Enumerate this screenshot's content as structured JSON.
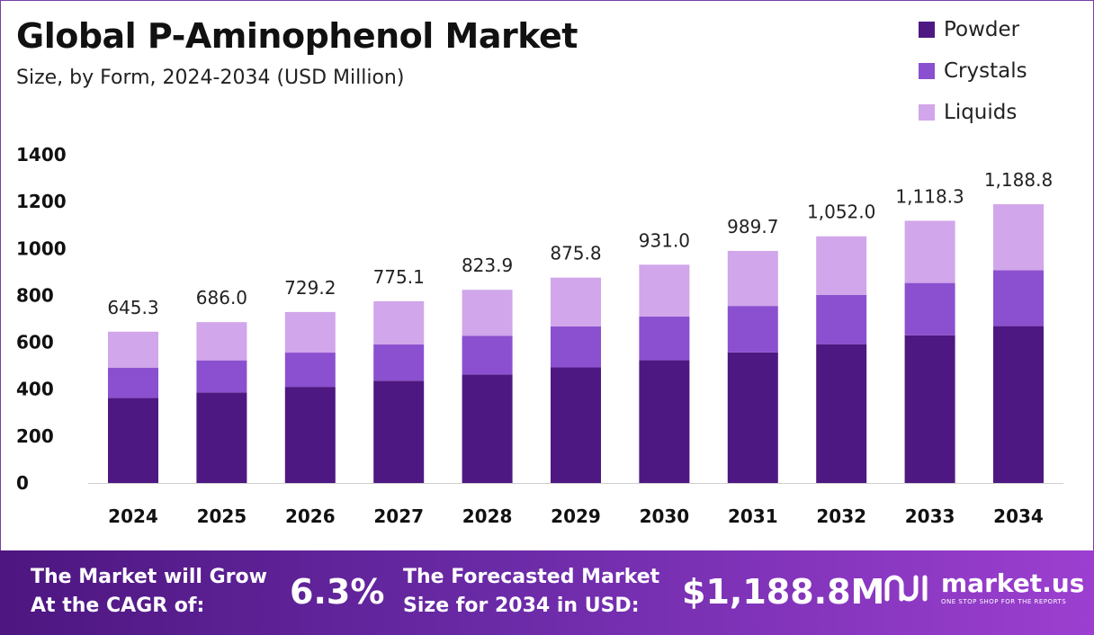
{
  "header": {
    "title": "Global P-Aminophenol Market",
    "subtitle": "Size, by Form, 2024-2034 (USD Million)"
  },
  "legend": [
    {
      "label": "Powder",
      "color": "#4e1882"
    },
    {
      "label": "Crystals",
      "color": "#8b50cf"
    },
    {
      "label": "Liquids",
      "color": "#d1a6ea"
    }
  ],
  "chart_data": {
    "type": "bar",
    "stacked": true,
    "categories": [
      "2024",
      "2025",
      "2026",
      "2027",
      "2028",
      "2029",
      "2030",
      "2031",
      "2032",
      "2033",
      "2034"
    ],
    "series": [
      {
        "name": "Powder",
        "color": "#4e1882",
        "values": [
          363,
          386,
          410,
          436,
          463,
          493,
          524,
          557,
          592,
          630,
          669
        ]
      },
      {
        "name": "Crystals",
        "color": "#8b50cf",
        "values": [
          129,
          137,
          146,
          155,
          165,
          175,
          186,
          198,
          210,
          223,
          238
        ]
      },
      {
        "name": "Liquids",
        "color": "#d1a6ea",
        "values": [
          153.3,
          163,
          173.2,
          184.1,
          195.9,
          207.8,
          221,
          234.7,
          250,
          265.3,
          281.8
        ]
      }
    ],
    "totals": [
      "645.3",
      "686.0",
      "729.2",
      "775.1",
      "823.9",
      "875.8",
      "931.0",
      "989.7",
      "1,052.0",
      "1,118.3",
      "1,188.8"
    ],
    "ylim": [
      0,
      1400
    ],
    "yticks": [
      0,
      200,
      400,
      600,
      800,
      1000,
      1200,
      1400
    ],
    "xlabel": "",
    "ylabel": "",
    "grid": false,
    "legend_position": "top-right"
  },
  "footer": {
    "cagr_label": "The Market will Grow\nAt the CAGR of:",
    "cagr_value": "6.3%",
    "forecast_label": "The Forecasted Market\nSize for 2034 in USD:",
    "forecast_value": "$1,188.8M",
    "brand_name": "market.us",
    "brand_tagline": "ONE STOP SHOP FOR THE REPORTS"
  }
}
